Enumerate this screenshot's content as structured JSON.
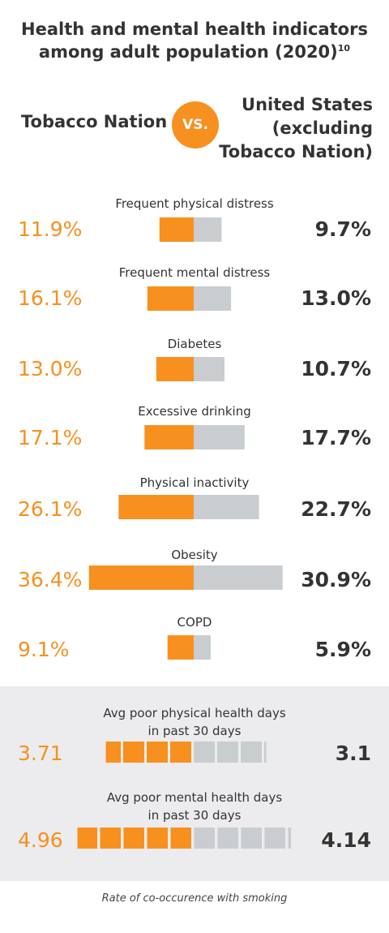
{
  "title_line1": "Health and mental health indicators",
  "title_line2": "among adult population (2020)",
  "title_ref": "10",
  "left_header": "Tobacco Nation",
  "vs_label": "VS.",
  "right_header_lines": [
    "United States",
    "(excluding",
    "Tobacco Nation)"
  ],
  "colors": {
    "orange": "#f7901e",
    "gray": "#c9cdd0",
    "text": "#333333",
    "panel": "#ececee"
  },
  "chart_data": [
    {
      "type": "bar",
      "categories": [
        "Frequent physical distress",
        "Frequent mental distress",
        "Diabetes",
        "Excessive drinking",
        "Physical inactivity",
        "Obesity",
        "COPD"
      ],
      "series": [
        {
          "name": "Tobacco Nation",
          "values": [
            11.9,
            16.1,
            13.0,
            17.1,
            26.1,
            36.4,
            9.1
          ],
          "labels": [
            "11.9%",
            "16.1%",
            "13.0%",
            "17.1%",
            "26.1%",
            "36.4%",
            "9.1%"
          ]
        },
        {
          "name": "United States (excluding Tobacco Nation)",
          "values": [
            9.7,
            13.0,
            10.7,
            17.7,
            22.7,
            30.9,
            5.9
          ],
          "labels": [
            "9.7%",
            "13.0%",
            "10.7%",
            "17.7%",
            "22.7%",
            "30.9%",
            "5.9%"
          ]
        }
      ]
    },
    {
      "type": "bar",
      "categories": [
        "Avg poor physical health days in past 30 days",
        "Avg poor mental health days in past 30 days"
      ],
      "series": [
        {
          "name": "Tobacco Nation",
          "values": [
            3.71,
            4.96
          ],
          "labels": [
            "3.71",
            "4.96"
          ]
        },
        {
          "name": "United States (excluding Tobacco Nation)",
          "values": [
            3.1,
            4.14
          ],
          "labels": [
            "3.1",
            "4.14"
          ]
        }
      ]
    }
  ],
  "days": [
    {
      "label_lines": [
        "Avg poor physical health days",
        "in past 30 days"
      ]
    },
    {
      "label_lines": [
        "Avg poor mental health days",
        "in past 30 days"
      ]
    }
  ],
  "footnote": "Rate of co-occurence with smoking"
}
